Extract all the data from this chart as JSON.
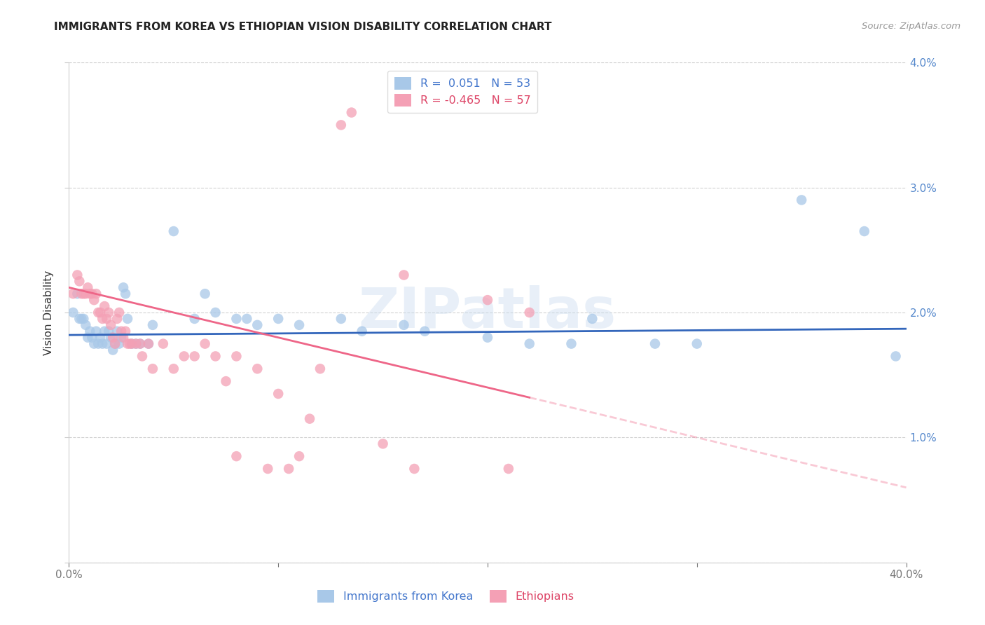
{
  "title": "IMMIGRANTS FROM KOREA VS ETHIOPIAN VISION DISABILITY CORRELATION CHART",
  "source": "Source: ZipAtlas.com",
  "ylabel": "Vision Disability",
  "xlim": [
    0.0,
    0.4
  ],
  "ylim": [
    0.0,
    0.04
  ],
  "yticks": [
    0.0,
    0.01,
    0.02,
    0.03,
    0.04
  ],
  "ytick_labels_right": [
    "",
    "1.0%",
    "2.0%",
    "3.0%",
    "4.0%"
  ],
  "xtick_positions": [
    0.0,
    0.1,
    0.2,
    0.3,
    0.4
  ],
  "xtick_labels": [
    "0.0%",
    "",
    "",
    "",
    "40.0%"
  ],
  "watermark": "ZIPatlas",
  "korea_color": "#a8c8e8",
  "ethiopia_color": "#f4a0b5",
  "korea_line_color": "#3366bb",
  "ethiopia_line_color": "#ee6688",
  "background_color": "#ffffff",
  "grid_color": "#cccccc",
  "korea_points": [
    [
      0.002,
      0.02
    ],
    [
      0.004,
      0.0215
    ],
    [
      0.005,
      0.0195
    ],
    [
      0.006,
      0.0195
    ],
    [
      0.007,
      0.0195
    ],
    [
      0.008,
      0.019
    ],
    [
      0.009,
      0.018
    ],
    [
      0.01,
      0.0185
    ],
    [
      0.011,
      0.018
    ],
    [
      0.012,
      0.0175
    ],
    [
      0.013,
      0.0185
    ],
    [
      0.014,
      0.0175
    ],
    [
      0.015,
      0.018
    ],
    [
      0.016,
      0.0175
    ],
    [
      0.017,
      0.0185
    ],
    [
      0.018,
      0.0175
    ],
    [
      0.019,
      0.0185
    ],
    [
      0.02,
      0.018
    ],
    [
      0.021,
      0.017
    ],
    [
      0.022,
      0.0175
    ],
    [
      0.023,
      0.0185
    ],
    [
      0.024,
      0.0175
    ],
    [
      0.025,
      0.018
    ],
    [
      0.026,
      0.022
    ],
    [
      0.027,
      0.0215
    ],
    [
      0.028,
      0.0195
    ],
    [
      0.03,
      0.0175
    ],
    [
      0.032,
      0.0175
    ],
    [
      0.034,
      0.0175
    ],
    [
      0.038,
      0.0175
    ],
    [
      0.04,
      0.019
    ],
    [
      0.05,
      0.0265
    ],
    [
      0.06,
      0.0195
    ],
    [
      0.065,
      0.0215
    ],
    [
      0.07,
      0.02
    ],
    [
      0.08,
      0.0195
    ],
    [
      0.085,
      0.0195
    ],
    [
      0.09,
      0.019
    ],
    [
      0.1,
      0.0195
    ],
    [
      0.11,
      0.019
    ],
    [
      0.13,
      0.0195
    ],
    [
      0.14,
      0.0185
    ],
    [
      0.16,
      0.019
    ],
    [
      0.17,
      0.0185
    ],
    [
      0.2,
      0.018
    ],
    [
      0.22,
      0.0175
    ],
    [
      0.24,
      0.0175
    ],
    [
      0.25,
      0.0195
    ],
    [
      0.28,
      0.0175
    ],
    [
      0.3,
      0.0175
    ],
    [
      0.35,
      0.029
    ],
    [
      0.38,
      0.0265
    ],
    [
      0.395,
      0.0165
    ]
  ],
  "ethiopia_points": [
    [
      0.002,
      0.0215
    ],
    [
      0.004,
      0.023
    ],
    [
      0.005,
      0.0225
    ],
    [
      0.006,
      0.0215
    ],
    [
      0.007,
      0.0215
    ],
    [
      0.008,
      0.0215
    ],
    [
      0.009,
      0.022
    ],
    [
      0.01,
      0.0215
    ],
    [
      0.011,
      0.0215
    ],
    [
      0.012,
      0.021
    ],
    [
      0.013,
      0.0215
    ],
    [
      0.014,
      0.02
    ],
    [
      0.015,
      0.02
    ],
    [
      0.016,
      0.0195
    ],
    [
      0.017,
      0.0205
    ],
    [
      0.018,
      0.0195
    ],
    [
      0.019,
      0.02
    ],
    [
      0.02,
      0.019
    ],
    [
      0.021,
      0.018
    ],
    [
      0.022,
      0.0175
    ],
    [
      0.023,
      0.0195
    ],
    [
      0.024,
      0.02
    ],
    [
      0.025,
      0.0185
    ],
    [
      0.026,
      0.018
    ],
    [
      0.027,
      0.0185
    ],
    [
      0.028,
      0.0175
    ],
    [
      0.029,
      0.0175
    ],
    [
      0.03,
      0.0175
    ],
    [
      0.032,
      0.0175
    ],
    [
      0.034,
      0.0175
    ],
    [
      0.035,
      0.0165
    ],
    [
      0.038,
      0.0175
    ],
    [
      0.04,
      0.0155
    ],
    [
      0.045,
      0.0175
    ],
    [
      0.05,
      0.0155
    ],
    [
      0.055,
      0.0165
    ],
    [
      0.06,
      0.0165
    ],
    [
      0.065,
      0.0175
    ],
    [
      0.07,
      0.0165
    ],
    [
      0.075,
      0.0145
    ],
    [
      0.08,
      0.0165
    ],
    [
      0.09,
      0.0155
    ],
    [
      0.1,
      0.0135
    ],
    [
      0.11,
      0.0085
    ],
    [
      0.12,
      0.0155
    ],
    [
      0.13,
      0.035
    ],
    [
      0.135,
      0.036
    ],
    [
      0.15,
      0.0095
    ],
    [
      0.16,
      0.023
    ],
    [
      0.165,
      0.0075
    ],
    [
      0.2,
      0.021
    ],
    [
      0.21,
      0.0075
    ],
    [
      0.22,
      0.02
    ],
    [
      0.105,
      0.0075
    ],
    [
      0.115,
      0.0115
    ],
    [
      0.095,
      0.0075
    ],
    [
      0.08,
      0.0085
    ]
  ],
  "korea_line": {
    "x0": 0.0,
    "y0": 0.0182,
    "x1": 0.4,
    "y1": 0.0187
  },
  "ethiopia_line": {
    "x0": 0.0,
    "y0": 0.022,
    "x1": 0.4,
    "y1": 0.006
  },
  "ethiopia_line_solid_to": 0.22,
  "ethiopia_line_dashed_from": 0.22
}
